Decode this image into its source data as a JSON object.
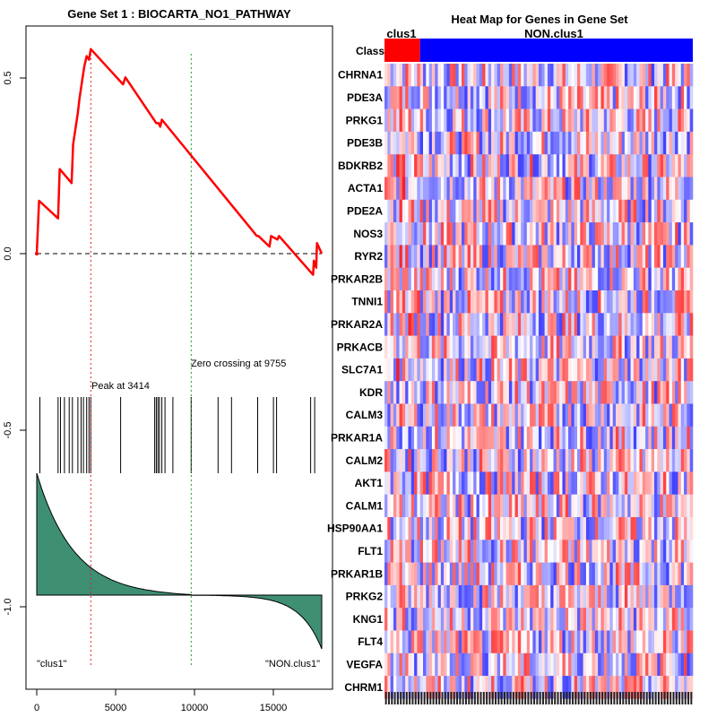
{
  "chart_data": [
    {
      "type": "line",
      "title": "Gene Set  1 : BIOCARTA_NO1_PATHWAY",
      "xlim": [
        0,
        18000
      ],
      "ylim": [
        -1.2,
        0.6
      ],
      "x_ticks": [
        "0",
        "5000",
        "10000",
        "15000"
      ],
      "x_tick_values": [
        0,
        5000,
        10000,
        15000
      ],
      "y_ticks": [
        "0.5",
        "0.0",
        "-0.5",
        "-1.0"
      ],
      "y_tick_values": [
        0.5,
        0.0,
        -0.5,
        -1.0
      ],
      "peak_label": "Peak at 3414",
      "peak_x": 3414,
      "zero_crossing_label": "Zero crossing at 9755",
      "zero_crossing_x": 9755,
      "left_label": "\"clus1\"",
      "right_label": "\"NON.clus1\"",
      "running_es": {
        "x": [
          0,
          150,
          1350,
          1450,
          2200,
          2300,
          2600,
          2700,
          2900,
          3000,
          3150,
          3300,
          3414,
          5450,
          5600,
          7550,
          7700,
          7800,
          7900,
          13900,
          14000,
          14700,
          14800,
          15200,
          15300,
          17450,
          17500,
          17650,
          17700,
          18000
        ],
        "y": [
          0.0,
          0.15,
          0.1,
          0.24,
          0.2,
          0.31,
          0.4,
          0.44,
          0.5,
          0.53,
          0.56,
          0.55,
          0.58,
          0.48,
          0.5,
          0.37,
          0.37,
          0.36,
          0.38,
          0.05,
          0.05,
          0.02,
          0.05,
          0.04,
          0.05,
          -0.06,
          -0.02,
          -0.04,
          0.03,
          0.0
        ]
      },
      "hits": [
        200,
        1350,
        1500,
        1750,
        2050,
        2250,
        2600,
        2800,
        2950,
        3150,
        3300,
        3414,
        5300,
        7450,
        7550,
        7650,
        7750,
        7900,
        8100,
        8600,
        9755,
        11450,
        12300,
        13950,
        14950,
        15150,
        17300,
        17550
      ],
      "metric": "ranked list metric, positive at left, crossing near 9755, strongly negative at right"
    },
    {
      "type": "heatmap",
      "title": "Heat Map for Genes in Gene Set",
      "class_row_label": "Class",
      "groups": [
        {
          "name": "clus1",
          "color": "#ff0000",
          "n_samples": 12
        },
        {
          "name": "NON.clus1",
          "color": "#0000ff",
          "n_samples": 92
        }
      ],
      "genes": [
        "CHRNA1",
        "PDE3A",
        "PRKG1",
        "PDE3B",
        "BDKRB2",
        "ACTA1",
        "PDE2A",
        "NOS3",
        "RYR2",
        "PRKAR2B",
        "TNNI1",
        "PRKAR2A",
        "PRKACB",
        "SLC7A1",
        "KDR",
        "CALM3",
        "PRKAR1A",
        "CALM2",
        "AKT1",
        "CALM1",
        "HSP90AA1",
        "FLT1",
        "PRKAR1B",
        "PRKG2",
        "KNG1",
        "FLT4",
        "VEGFA",
        "CHRM1"
      ],
      "color_scale": [
        "#0000ff",
        "#ffffff",
        "#ff0000"
      ]
    }
  ]
}
